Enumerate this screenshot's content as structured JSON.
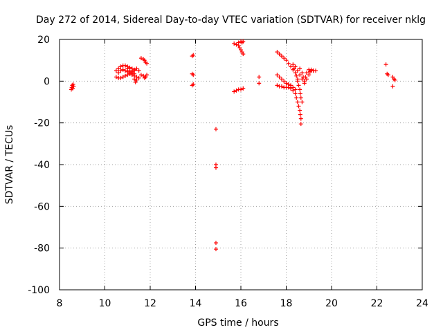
{
  "chart_data": {
    "type": "scatter",
    "title": "Day 272 of 2014, Sidereal Day-to-day VTEC variation (SDTVAR) for receiver nklg",
    "xlabel": "GPS time / hours",
    "ylabel": "SDTVAR / TECUs",
    "xlim": [
      8,
      24
    ],
    "ylim": [
      -100,
      20
    ],
    "xticks": [
      8,
      10,
      12,
      14,
      16,
      18,
      20,
      22,
      24
    ],
    "yticks": [
      20,
      0,
      -20,
      -40,
      -60,
      -80,
      -100
    ],
    "xtick_labels": [
      "8",
      "10",
      "12",
      "14",
      "16",
      "18",
      "20",
      "22",
      "24"
    ],
    "ytick_labels": [
      "20",
      "0",
      "-20",
      "-40",
      "-60",
      "-80",
      "-100"
    ],
    "grid": true,
    "marker": "+",
    "series": [
      {
        "name": "SDTVAR",
        "color": "#ff0000",
        "points": [
          [
            8.52,
            -4.0
          ],
          [
            8.54,
            -3.0
          ],
          [
            8.56,
            -2.0
          ],
          [
            8.58,
            -3.5
          ],
          [
            8.6,
            -1.5
          ],
          [
            8.62,
            -2.5
          ],
          [
            10.5,
            5.0
          ],
          [
            10.6,
            6.0
          ],
          [
            10.7,
            7.0
          ],
          [
            10.8,
            7.5
          ],
          [
            10.9,
            7.5
          ],
          [
            11.0,
            7.0
          ],
          [
            11.1,
            6.5
          ],
          [
            11.2,
            6.0
          ],
          [
            11.3,
            5.5
          ],
          [
            10.5,
            2.0
          ],
          [
            10.6,
            1.5
          ],
          [
            10.7,
            1.5
          ],
          [
            10.8,
            2.0
          ],
          [
            10.9,
            2.5
          ],
          [
            11.0,
            3.0
          ],
          [
            11.1,
            3.5
          ],
          [
            11.2,
            4.0
          ],
          [
            11.3,
            3.5
          ],
          [
            10.6,
            4.0
          ],
          [
            10.7,
            5.0
          ],
          [
            10.8,
            5.5
          ],
          [
            10.9,
            5.0
          ],
          [
            11.0,
            4.5
          ],
          [
            11.1,
            4.0
          ],
          [
            11.2,
            3.0
          ],
          [
            11.3,
            2.5
          ],
          [
            11.4,
            2.0
          ],
          [
            11.5,
            1.5
          ],
          [
            11.0,
            6.0
          ],
          [
            11.1,
            5.0
          ],
          [
            11.2,
            4.5
          ],
          [
            11.3,
            5.0
          ],
          [
            11.4,
            6.0
          ],
          [
            11.5,
            5.0
          ],
          [
            11.3,
            1.0
          ],
          [
            11.35,
            -0.5
          ],
          [
            11.4,
            0.5
          ],
          [
            11.6,
            3.0
          ],
          [
            11.7,
            2.5
          ],
          [
            11.75,
            1.5
          ],
          [
            11.8,
            2.0
          ],
          [
            11.85,
            3.0
          ],
          [
            11.6,
            11.0
          ],
          [
            11.7,
            10.5
          ],
          [
            11.75,
            10.0
          ],
          [
            11.8,
            9.0
          ],
          [
            11.85,
            8.5
          ],
          [
            13.85,
            12.0
          ],
          [
            13.9,
            12.5
          ],
          [
            13.85,
            3.5
          ],
          [
            13.9,
            3.0
          ],
          [
            13.85,
            -2.0
          ],
          [
            13.9,
            -1.5
          ],
          [
            14.9,
            -23.0
          ],
          [
            14.9,
            -40.0
          ],
          [
            14.9,
            -41.5
          ],
          [
            14.9,
            -77.5
          ],
          [
            14.9,
            -80.5
          ],
          [
            15.7,
            -5.0
          ],
          [
            15.8,
            -4.5
          ],
          [
            15.9,
            -4.0
          ],
          [
            16.0,
            -4.0
          ],
          [
            16.1,
            -3.5
          ],
          [
            15.7,
            18.0
          ],
          [
            15.8,
            17.5
          ],
          [
            15.9,
            17.0
          ],
          [
            15.95,
            16.0
          ],
          [
            16.0,
            15.0
          ],
          [
            16.05,
            14.0
          ],
          [
            16.1,
            13.0
          ],
          [
            15.9,
            18.5
          ],
          [
            16.0,
            19.0
          ],
          [
            16.05,
            18.5
          ],
          [
            16.1,
            19.0
          ],
          [
            16.8,
            2.0
          ],
          [
            16.8,
            -1.0
          ],
          [
            17.6,
            14.0
          ],
          [
            17.7,
            13.0
          ],
          [
            17.8,
            12.0
          ],
          [
            17.9,
            11.0
          ],
          [
            18.0,
            10.0
          ],
          [
            18.1,
            8.5
          ],
          [
            18.2,
            7.0
          ],
          [
            18.3,
            5.5
          ],
          [
            18.4,
            4.0
          ],
          [
            18.45,
            2.5
          ],
          [
            18.5,
            1.0
          ],
          [
            17.6,
            3.0
          ],
          [
            17.7,
            2.0
          ],
          [
            17.8,
            1.0
          ],
          [
            17.9,
            0.0
          ],
          [
            18.0,
            -1.0
          ],
          [
            18.1,
            -1.5
          ],
          [
            18.2,
            -2.0
          ],
          [
            18.3,
            -3.0
          ],
          [
            18.4,
            -4.0
          ],
          [
            17.6,
            -2.0
          ],
          [
            17.7,
            -2.5
          ],
          [
            17.8,
            -2.5
          ],
          [
            17.9,
            -3.0
          ],
          [
            18.0,
            -3.0
          ],
          [
            18.1,
            -3.0
          ],
          [
            18.2,
            -3.5
          ],
          [
            18.3,
            -4.5
          ],
          [
            18.4,
            -6.0
          ],
          [
            18.45,
            -8.0
          ],
          [
            18.5,
            -10.0
          ],
          [
            18.55,
            -12.0
          ],
          [
            18.6,
            -14.0
          ],
          [
            18.62,
            -16.0
          ],
          [
            18.65,
            -18.0
          ],
          [
            18.65,
            -20.5
          ],
          [
            18.5,
            0.0
          ],
          [
            18.55,
            -2.0
          ],
          [
            18.6,
            -4.0
          ],
          [
            18.62,
            -6.0
          ],
          [
            18.65,
            -8.0
          ],
          [
            18.7,
            -10.0
          ],
          [
            18.5,
            5.0
          ],
          [
            18.6,
            3.0
          ],
          [
            18.7,
            1.0
          ],
          [
            18.8,
            0.0
          ],
          [
            18.9,
            1.0
          ],
          [
            19.0,
            3.0
          ],
          [
            19.05,
            4.5
          ],
          [
            19.1,
            5.0
          ],
          [
            19.2,
            5.0
          ],
          [
            19.3,
            5.0
          ],
          [
            18.3,
            8.0
          ],
          [
            18.35,
            6.0
          ],
          [
            18.4,
            7.0
          ],
          [
            18.6,
            6.0
          ],
          [
            18.7,
            4.0
          ],
          [
            18.75,
            2.0
          ],
          [
            18.8,
            -1.0
          ],
          [
            18.85,
            2.0
          ],
          [
            18.9,
            4.0
          ],
          [
            19.0,
            5.5
          ],
          [
            19.1,
            5.5
          ],
          [
            19.2,
            5.0
          ],
          [
            22.4,
            8.0
          ],
          [
            22.45,
            3.5
          ],
          [
            22.5,
            3.0
          ],
          [
            22.7,
            2.0
          ],
          [
            22.75,
            1.0
          ],
          [
            22.8,
            0.5
          ],
          [
            22.7,
            -2.5
          ]
        ]
      }
    ]
  }
}
